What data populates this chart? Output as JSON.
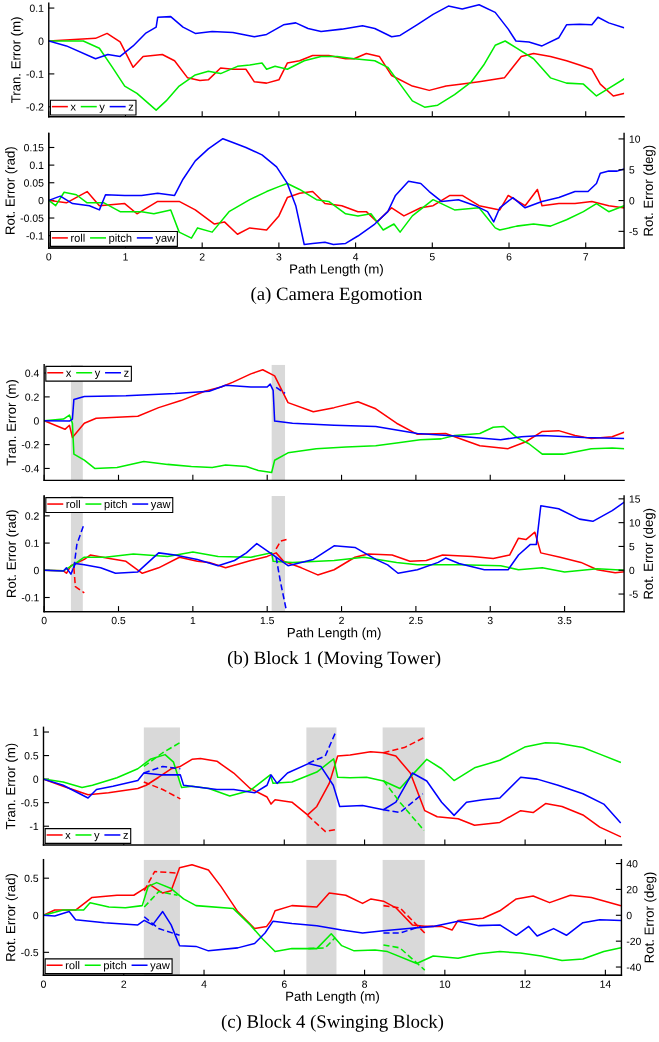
{
  "chart_data": [
    {
      "type": "line",
      "ylabel": "Tran. Error (m)",
      "xlim": [
        0,
        7.5
      ],
      "ylim": [
        -0.23,
        0.115
      ],
      "xticks": [
        0,
        1,
        2,
        3,
        4,
        5,
        6,
        7
      ],
      "yticks": [
        -0.2,
        -0.1,
        0,
        0.1
      ],
      "tick_labels": "y",
      "legend": "bottom left",
      "series": [
        {
          "name": "x",
          "color": "#ff0000",
          "x": [
            0,
            0.61,
            0.76,
            0.93,
            1.1,
            1.23,
            1.48,
            1.64,
            1.81,
            1.97,
            2.08,
            2.24,
            2.4,
            2.57,
            2.68,
            2.84,
            3.0,
            3.11,
            3.27,
            3.44,
            3.65,
            3.87,
            3.98,
            4.14,
            4.31,
            4.47,
            4.74,
            4.96,
            5.18,
            5.39,
            5.61,
            5.94,
            6.16,
            6.32,
            6.54,
            6.75,
            6.92,
            7.08,
            7.19,
            7.36,
            7.5
          ],
          "values": [
            0,
            0.008,
            0.023,
            -0.003,
            -0.08,
            -0.047,
            -0.041,
            -0.06,
            -0.112,
            -0.12,
            -0.118,
            -0.082,
            -0.086,
            -0.086,
            -0.124,
            -0.128,
            -0.118,
            -0.067,
            -0.06,
            -0.044,
            -0.044,
            -0.054,
            -0.054,
            -0.038,
            -0.047,
            -0.105,
            -0.137,
            -0.15,
            -0.137,
            -0.131,
            -0.124,
            -0.112,
            -0.047,
            -0.038,
            -0.047,
            -0.06,
            -0.073,
            -0.086,
            -0.131,
            -0.167,
            -0.159
          ]
        },
        {
          "name": "y",
          "color": "#00ee00",
          "x": [
            0,
            0.45,
            0.66,
            0.83,
            0.99,
            1.15,
            1.4,
            1.53,
            1.7,
            1.91,
            2.08,
            2.24,
            2.46,
            2.62,
            2.78,
            2.84,
            2.95,
            3.11,
            3.33,
            3.55,
            3.76,
            3.98,
            4.25,
            4.42,
            4.58,
            4.74,
            4.9,
            5.07,
            5.29,
            5.51,
            5.67,
            5.82,
            5.95,
            6.1,
            6.32,
            6.54,
            6.75,
            6.97,
            7.14,
            7.3,
            7.5
          ],
          "values": [
            0,
            0,
            -0.022,
            -0.08,
            -0.137,
            -0.159,
            -0.21,
            -0.182,
            -0.137,
            -0.103,
            -0.092,
            -0.099,
            -0.077,
            -0.073,
            -0.067,
            -0.086,
            -0.077,
            -0.086,
            -0.06,
            -0.047,
            -0.047,
            -0.054,
            -0.06,
            -0.08,
            -0.131,
            -0.182,
            -0.201,
            -0.195,
            -0.163,
            -0.124,
            -0.073,
            -0.013,
            0,
            -0.022,
            -0.054,
            -0.112,
            -0.128,
            -0.131,
            -0.167,
            -0.144,
            -0.115
          ]
        },
        {
          "name": "z",
          "color": "#0000ff",
          "x": [
            0,
            0.23,
            0.61,
            0.77,
            0.93,
            1.1,
            1.26,
            1.4,
            1.42,
            1.59,
            1.75,
            1.91,
            2.13,
            2.4,
            2.68,
            2.84,
            3.06,
            3.22,
            3.38,
            3.55,
            3.82,
            4.09,
            4.25,
            4.47,
            4.58,
            4.8,
            5.01,
            5.21,
            5.39,
            5.61,
            5.82,
            5.99,
            6.09,
            6.26,
            6.43,
            6.65,
            6.75,
            6.92,
            7.08,
            7.16,
            7.3,
            7.5
          ],
          "values": [
            0,
            -0.015,
            -0.054,
            -0.041,
            -0.047,
            -0.015,
            0.023,
            0.042,
            0.072,
            0.074,
            0.042,
            0.023,
            0.029,
            0.026,
            0.013,
            0.02,
            0.049,
            0.055,
            0.038,
            0.029,
            0.036,
            0.046,
            0.038,
            0.013,
            0.017,
            0.049,
            0.081,
            0.106,
            0.097,
            0.11,
            0.087,
            0.036,
            0,
            -0.003,
            -0.015,
            0.01,
            0.049,
            0.051,
            0.049,
            0.072,
            0.055,
            0.04
          ]
        }
      ]
    },
    {
      "type": "line",
      "title": "(a) Camera Egomotion",
      "xlabel": "Path Length (m)",
      "ylabel": "Rot. Error (rad)",
      "y2label": "Rot. Error (deg)",
      "xlim": [
        0,
        7.5
      ],
      "ylim": [
        -0.135,
        0.19
      ],
      "y2lim": [
        -7.7,
        10.9
      ],
      "xticks": [
        0,
        1,
        2,
        3,
        4,
        5,
        6,
        7
      ],
      "yticks": [
        -0.1,
        -0.05,
        0,
        0.05,
        0.1,
        0.15
      ],
      "y2ticks": [
        -5,
        0,
        5,
        10
      ],
      "legend": "bottom left",
      "series": [
        {
          "name": "roll",
          "color": "#ff0000",
          "x": [
            0,
            0.23,
            0.5,
            0.66,
            0.99,
            1.15,
            1.42,
            1.7,
            1.91,
            2.16,
            2.29,
            2.46,
            2.62,
            2.84,
            3.0,
            3.11,
            3.27,
            3.44,
            3.6,
            3.82,
            4.03,
            4.14,
            4.28,
            4.47,
            4.63,
            4.85,
            5.01,
            5.23,
            5.39,
            5.61,
            5.88,
            5.99,
            6.21,
            6.37,
            6.43,
            6.65,
            6.86,
            7.08,
            7.3,
            7.5
          ],
          "values": [
            0,
            -0.007,
            0.025,
            -0.015,
            -0.009,
            -0.038,
            -0.003,
            -0.003,
            -0.027,
            -0.067,
            -0.061,
            -0.096,
            -0.078,
            -0.084,
            -0.044,
            0.008,
            0.02,
            0.025,
            -0.009,
            -0.015,
            -0.032,
            -0.032,
            -0.061,
            -0.021,
            -0.044,
            -0.021,
            -0.015,
            0.014,
            0.014,
            -0.015,
            -0.027,
            0.014,
            -0.015,
            0.031,
            -0.015,
            -0.009,
            -0.009,
            -0.003,
            -0.015,
            -0.021
          ]
        },
        {
          "name": "pitch",
          "color": "#00ee00",
          "x": [
            0,
            0.09,
            0.2,
            0.36,
            0.5,
            0.72,
            0.93,
            1.21,
            1.37,
            1.59,
            1.7,
            1.86,
            1.94,
            2.13,
            2.35,
            2.62,
            2.84,
            3.0,
            3.11,
            3.27,
            3.49,
            3.65,
            3.87,
            4.03,
            4.2,
            4.36,
            4.5,
            4.58,
            4.74,
            5.01,
            5.29,
            5.61,
            5.82,
            5.88,
            6.1,
            6.32,
            6.54,
            6.75,
            6.97,
            7.14,
            7.3,
            7.5
          ],
          "values": [
            0,
            -0.015,
            0.023,
            0.016,
            -0.007,
            -0.007,
            -0.032,
            -0.032,
            -0.038,
            -0.027,
            -0.09,
            -0.107,
            -0.078,
            -0.09,
            -0.032,
            0.002,
            0.025,
            0.039,
            0.048,
            0.031,
            0.002,
            -0.003,
            -0.038,
            -0.044,
            -0.038,
            -0.084,
            -0.067,
            -0.09,
            -0.044,
            0.002,
            -0.027,
            -0.021,
            -0.078,
            -0.084,
            -0.073,
            -0.067,
            -0.073,
            -0.055,
            -0.032,
            -0.009,
            -0.032,
            -0.015
          ]
        },
        {
          "name": "yaw",
          "color": "#0000ff",
          "x": [
            0,
            0.15,
            0.31,
            0.53,
            0.66,
            0.74,
            0.99,
            1.21,
            1.42,
            1.64,
            1.75,
            1.91,
            2.08,
            2.27,
            2.4,
            2.57,
            2.78,
            2.97,
            3.11,
            3.22,
            3.33,
            3.44,
            3.6,
            3.71,
            3.87,
            4.03,
            4.25,
            4.42,
            4.52,
            4.69,
            4.85,
            4.96,
            5.12,
            5.34,
            5.56,
            5.72,
            5.8,
            5.88,
            6.05,
            6.21,
            6.43,
            6.65,
            6.86,
            7.03,
            7.14,
            7.19,
            7.3,
            7.41,
            7.5
          ],
          "values": [
            0,
            0.012,
            -0.009,
            -0.015,
            -0.027,
            0.016,
            0.014,
            0.014,
            0.02,
            0.014,
            0.06,
            0.112,
            0.146,
            0.175,
            0.164,
            0.15,
            0.129,
            0.095,
            0.048,
            -0.015,
            -0.125,
            -0.122,
            -0.119,
            -0.125,
            -0.122,
            -0.101,
            -0.067,
            -0.032,
            0.014,
            0.054,
            0.048,
            0.025,
            -0.003,
            0.002,
            -0.015,
            -0.032,
            -0.061,
            -0.021,
            0.008,
            -0.021,
            -0.003,
            0.008,
            0.025,
            0.025,
            0.048,
            0.077,
            0.083,
            0.083,
            0.089
          ]
        }
      ]
    },
    {
      "type": "line",
      "ylabel": "Tran. Error (m)",
      "xlim": [
        0,
        3.9
      ],
      "ylim": [
        -0.5,
        0.47
      ],
      "xticks": [
        0,
        0.5,
        1,
        1.5,
        2,
        2.5,
        3,
        3.5
      ],
      "yticks": [
        -0.4,
        -0.2,
        0,
        0.2,
        0.4
      ],
      "tick_labels": "y",
      "legend": "top left",
      "bands": [
        {
          "axis": "x",
          "from": 0.18,
          "to": 0.26,
          "color": "#d9d9d9"
        },
        {
          "axis": "x",
          "from": 1.53,
          "to": 1.62,
          "color": "#d9d9d9"
        }
      ],
      "series": [
        {
          "name": "x",
          "color": "#ff0000",
          "x": [
            0,
            0.14,
            0.17,
            0.19,
            0.27,
            0.35,
            0.63,
            0.77,
            0.92,
            1.08,
            1.19,
            1.27,
            1.39,
            1.47,
            1.55,
            1.64,
            1.81,
            1.95,
            2.11,
            2.23,
            2.37,
            2.51,
            2.7,
            2.93,
            3.12,
            3.24,
            3.35,
            3.46,
            3.57,
            3.68,
            3.82,
            3.9
          ],
          "values": [
            0,
            -0.072,
            -0.038,
            -0.14,
            -0.021,
            0.021,
            0.038,
            0.11,
            0.169,
            0.248,
            0.283,
            0.324,
            0.393,
            0.428,
            0.376,
            0.152,
            0.076,
            0.11,
            0.159,
            0.1,
            -0.021,
            -0.114,
            -0.107,
            -0.21,
            -0.234,
            -0.176,
            -0.09,
            -0.083,
            -0.124,
            -0.148,
            -0.134,
            -0.097
          ]
        },
        {
          "name": "y",
          "color": "#00ee00",
          "x": [
            0,
            0.13,
            0.17,
            0.19,
            0.2,
            0.27,
            0.34,
            0.49,
            0.67,
            0.83,
            0.99,
            1.13,
            1.22,
            1.36,
            1.44,
            1.53,
            1.55,
            1.64,
            1.83,
            2.03,
            2.23,
            2.37,
            2.53,
            2.67,
            2.76,
            2.93,
            3.02,
            3.09,
            3.18,
            3.26,
            3.35,
            3.49,
            3.68,
            3.82,
            3.9
          ],
          "values": [
            0,
            0.014,
            0.048,
            -0.021,
            -0.28,
            -0.331,
            -0.4,
            -0.393,
            -0.341,
            -0.366,
            -0.383,
            -0.393,
            -0.372,
            -0.383,
            -0.417,
            -0.434,
            -0.331,
            -0.269,
            -0.234,
            -0.221,
            -0.21,
            -0.186,
            -0.159,
            -0.152,
            -0.124,
            -0.107,
            -0.055,
            -0.048,
            -0.141,
            -0.193,
            -0.28,
            -0.28,
            -0.234,
            -0.228,
            -0.234
          ]
        },
        {
          "name": "z",
          "color": "#0000ff",
          "x": [
            0,
            0.17,
            0.19,
            0.2,
            0.27,
            0.55,
            0.88,
            1.11,
            1.22,
            1.39,
            1.5,
            1.52,
            1.54,
            1.55,
            1.67,
            1.95,
            2.23,
            2.51,
            2.79,
            3.07,
            3.21,
            3.35,
            3.63,
            3.9
          ],
          "values": [
            0,
            -0.003,
            0.014,
            0.179,
            0.203,
            0.21,
            0.228,
            0.248,
            0.297,
            0.283,
            0.283,
            0.307,
            0.255,
            -0.003,
            -0.021,
            -0.038,
            -0.048,
            -0.107,
            -0.131,
            -0.159,
            -0.134,
            -0.124,
            -0.141,
            -0.148
          ]
        },
        {
          "color": "#0000ff",
          "line_style": "dashed",
          "x": [
            1.56,
            1.62
          ],
          "values": [
            0.28,
            0.23
          ]
        }
      ]
    },
    {
      "type": "line",
      "title": "(b) Block 1 (Moving Tower)",
      "xlabel": "Path Length (m)",
      "ylabel": "Rot. Error (rad)",
      "y2label": "Rot. Error (deg)",
      "xlim": [
        0,
        3.9
      ],
      "ylim": [
        -0.152,
        0.273
      ],
      "y2lim": [
        -8.7,
        15.6
      ],
      "xticks": [
        0,
        0.5,
        1,
        1.5,
        2,
        2.5,
        3,
        3.5
      ],
      "yticks": [
        -0.1,
        0,
        0.1,
        0.2
      ],
      "y2ticks": [
        -5,
        0,
        5,
        10,
        15
      ],
      "legend": "top left",
      "bands": [
        {
          "axis": "x",
          "from": 0.18,
          "to": 0.26,
          "color": "#d9d9d9"
        },
        {
          "axis": "x",
          "from": 1.53,
          "to": 1.62,
          "color": "#d9d9d9"
        }
      ],
      "series": [
        {
          "name": "roll",
          "color": "#ff0000",
          "x": [
            0,
            0.13,
            0.15,
            0.18,
            0.27,
            0.31,
            0.44,
            0.55,
            0.66,
            0.77,
            0.91,
            1.03,
            1.11,
            1.22,
            1.39,
            1.5,
            1.56,
            1.61,
            1.73,
            1.84,
            1.95,
            2.09,
            2.18,
            2.34,
            2.46,
            2.57,
            2.68,
            2.88,
            3.02,
            3.13,
            3.19,
            3.24,
            3.3,
            3.34,
            3.47,
            3.61,
            3.72,
            3.84,
            3.9
          ],
          "values": [
            0,
            -0.002,
            -0.011,
            0.017,
            0.04,
            0.056,
            0.043,
            0.033,
            -0.011,
            0.009,
            0.048,
            0.033,
            0.029,
            0.009,
            0.036,
            0.051,
            0.064,
            0.033,
            0.009,
            -0.017,
            0.002,
            0.048,
            0.06,
            0.056,
            0.033,
            0.036,
            0.056,
            0.051,
            0.043,
            0.056,
            0.118,
            0.113,
            0.14,
            0.064,
            0.048,
            0.029,
            0.002,
            -0.009,
            -0.006
          ]
        },
        {
          "name": "pitch",
          "color": "#00ee00",
          "x": [
            0,
            0.13,
            0.21,
            0.27,
            0.41,
            0.6,
            0.83,
            1.0,
            1.17,
            1.39,
            1.53,
            1.54,
            1.67,
            1.95,
            2.15,
            2.37,
            2.51,
            2.79,
            3.07,
            3.19,
            3.35,
            3.5,
            3.72,
            3.9
          ],
          "values": [
            0,
            -0.002,
            0.025,
            0.048,
            0.048,
            0.06,
            0.051,
            0.067,
            0.051,
            0.048,
            0.064,
            0.033,
            0.029,
            0.036,
            0.048,
            0.029,
            0.02,
            0.02,
            0.017,
            0.002,
            0.009,
            -0.006,
            0.006,
            0
          ]
        },
        {
          "name": "yaw",
          "color": "#0000ff",
          "x": [
            0,
            0.13,
            0.15,
            0.18,
            0.21,
            0.27,
            0.38,
            0.48,
            0.63,
            0.77,
            0.88,
            1.03,
            1.17,
            1.28,
            1.36,
            1.43,
            1.5,
            1.56,
            1.64,
            1.81,
            1.95,
            2.09,
            2.23,
            2.31,
            2.38,
            2.51,
            2.65,
            2.7,
            2.79,
            2.96,
            3.12,
            3.19,
            3.27,
            3.31,
            3.34,
            3.46,
            3.6,
            3.69,
            3.82,
            3.9
          ],
          "values": [
            0,
            -0.003,
            0.009,
            -0.014,
            0.025,
            0.02,
            0.009,
            -0.011,
            -0.006,
            0.064,
            0.056,
            0.04,
            0.017,
            0.036,
            0.064,
            0.098,
            0.071,
            0.048,
            0.017,
            0.04,
            0.09,
            0.084,
            0.04,
            0.02,
            -0.011,
            0.002,
            0.029,
            0.045,
            0.025,
            0.002,
            0.002,
            0.056,
            0.095,
            0.095,
            0.237,
            0.226,
            0.188,
            0.18,
            0.219,
            0.25
          ]
        },
        {
          "color": "#ff0000",
          "line_style": "dashed",
          "x": [
            0.2,
            0.21,
            0.27
          ],
          "values": [
            0.009,
            -0.06,
            -0.083
          ]
        },
        {
          "color": "#ff0000",
          "line_style": "dashed",
          "x": [
            1.56,
            1.59,
            1.63
          ],
          "values": [
            0.079,
            0.107,
            0.113
          ]
        },
        {
          "color": "#0000ff",
          "line_style": "dashed",
          "x": [
            0.2,
            0.22,
            0.27
          ],
          "values": [
            0.009,
            0.095,
            0.172
          ]
        },
        {
          "color": "#0000ff",
          "line_style": "dashed",
          "x": [
            1.56,
            1.59,
            1.63
          ],
          "values": [
            0.048,
            -0.045,
            -0.15
          ]
        }
      ]
    },
    {
      "type": "line",
      "ylabel": "Tran. Error (m)",
      "xlim": [
        0,
        14.4
      ],
      "ylim": [
        -1.4,
        1.1
      ],
      "xticks": [
        0,
        2,
        4,
        6,
        8,
        10,
        12,
        14
      ],
      "yticks": [
        -1,
        -0.5,
        0,
        0.5,
        1
      ],
      "tick_labels": "y",
      "legend": "bottom left",
      "bands": [
        {
          "axis": "x",
          "from": 2.5,
          "to": 3.4,
          "color": "#d9d9d9"
        },
        {
          "axis": "x",
          "from": 6.55,
          "to": 7.3,
          "color": "#d9d9d9"
        },
        {
          "axis": "x",
          "from": 8.45,
          "to": 9.5,
          "color": "#d9d9d9"
        }
      ],
      "series": [
        {
          "name": "x",
          "color": "#ff0000",
          "x": [
            0,
            0.49,
            1.11,
            1.62,
            2.35,
            2.56,
            2.87,
            3.18,
            3.41,
            3.7,
            3.91,
            4.32,
            4.74,
            5.15,
            5.57,
            5.67,
            5.77,
            6.19,
            6.58,
            6.81,
            7.12,
            7.33,
            7.64,
            8.15,
            8.47,
            8.78,
            9.14,
            9.5,
            9.81,
            10.33,
            10.74,
            11.37,
            11.89,
            12.2,
            12.51,
            12.92,
            13.44,
            13.86,
            14.37
          ],
          "values": [
            0,
            -0.15,
            -0.33,
            -0.29,
            -0.2,
            -0.13,
            0.04,
            0.22,
            0.27,
            0.42,
            0.44,
            0.38,
            0.13,
            -0.2,
            -0.38,
            -0.53,
            -0.44,
            -0.49,
            -0.76,
            -0.58,
            -0.09,
            0.49,
            0.51,
            0.58,
            0.56,
            0.49,
            0.13,
            -0.67,
            -0.8,
            -0.84,
            -0.98,
            -0.92,
            -0.67,
            -0.71,
            -0.52,
            -0.58,
            -0.76,
            -1.02,
            -1.22
          ]
        },
        {
          "name": "y",
          "color": "#00ee00",
          "x": [
            0,
            0.49,
            0.96,
            1.22,
            1.83,
            2.35,
            2.66,
            3.03,
            3.24,
            3.44,
            3.7,
            4.12,
            4.64,
            5.15,
            5.65,
            5.72,
            6.19,
            6.81,
            7.23,
            7.33,
            7.64,
            8.05,
            8.47,
            8.88,
            9.19,
            9.55,
            9.92,
            10.23,
            10.74,
            11.37,
            11.99,
            12.51,
            12.82,
            13.44,
            13.86,
            14.37
          ],
          "values": [
            0,
            -0.06,
            -0.18,
            -0.13,
            0.03,
            0.22,
            0.42,
            0.52,
            0.36,
            -0.18,
            -0.15,
            -0.2,
            -0.36,
            -0.24,
            0.09,
            -0.09,
            -0.06,
            0.15,
            0.43,
            0.04,
            0.03,
            0.04,
            -0.04,
            -0.2,
            0.09,
            0.42,
            0.22,
            -0.03,
            0.24,
            0.4,
            0.68,
            0.77,
            0.76,
            0.67,
            0.53,
            0.36
          ]
        },
        {
          "name": "z",
          "color": "#0000ff",
          "x": [
            0,
            0.49,
            1.11,
            1.32,
            1.73,
            2.35,
            2.5,
            2.97,
            3.41,
            3.49,
            4.32,
            4.74,
            5.26,
            5.57,
            5.67,
            5.82,
            6.08,
            6.6,
            6.91,
            7.22,
            7.38,
            7.95,
            8.47,
            8.78,
            9.19,
            9.55,
            9.92,
            10.23,
            10.54,
            10.95,
            11.37,
            11.89,
            12.3,
            12.82,
            13.44,
            13.96,
            14.37
          ],
          "values": [
            0,
            -0.13,
            -0.4,
            -0.22,
            -0.15,
            -0.03,
            0.13,
            0.09,
            0.09,
            -0.13,
            -0.22,
            -0.22,
            -0.29,
            -0.13,
            0.09,
            -0.09,
            0.13,
            0.33,
            0.27,
            -0.13,
            -0.58,
            -0.56,
            -0.65,
            -0.49,
            0.13,
            -0.04,
            -0.49,
            -0.77,
            -0.49,
            -0.44,
            -0.4,
            0.04,
            0,
            -0.13,
            -0.31,
            -0.53,
            -0.92
          ]
        },
        {
          "color": "#ff0000",
          "line_style": "dashed",
          "x": [
            2.5,
            2.97,
            3.41
          ],
          "values": [
            -0.06,
            -0.22,
            -0.42
          ]
        },
        {
          "color": "#ff0000",
          "line_style": "dashed",
          "x": [
            6.58,
            7.02,
            7.3
          ],
          "values": [
            -0.77,
            -1.11,
            -1.07
          ]
        },
        {
          "color": "#ff0000",
          "line_style": "dashed",
          "x": [
            8.47,
            8.99,
            9.5
          ],
          "values": [
            0.56,
            0.67,
            0.89
          ]
        },
        {
          "color": "#00ee00",
          "line_style": "dashed",
          "x": [
            2.5,
            2.97,
            3.39
          ],
          "values": [
            0.27,
            0.56,
            0.77
          ]
        },
        {
          "color": "#00ee00",
          "line_style": "dashed",
          "x": [
            8.47,
            8.88,
            9.48
          ],
          "values": [
            -0.03,
            -0.49,
            -1.09
          ]
        },
        {
          "color": "#0000ff",
          "line_style": "dashed",
          "x": [
            2.5,
            2.97,
            3.41
          ],
          "values": [
            0.13,
            0.27,
            0.22
          ]
        },
        {
          "color": "#0000ff",
          "line_style": "dashed",
          "x": [
            6.6,
            7.02,
            7.28
          ],
          "values": [
            0.34,
            0.49,
            1.0
          ]
        },
        {
          "color": "#0000ff",
          "line_style": "dashed",
          "x": [
            8.47,
            8.88,
            9.45
          ],
          "values": [
            -0.65,
            -0.71,
            -0.31
          ]
        }
      ]
    },
    {
      "type": "line",
      "title": "(c) Block 4 (Swinging Block)",
      "xlabel": "Path Length (m)",
      "ylabel": "Rot. Error (rad)",
      "y2label": "Rot. Error (deg)",
      "xlim": [
        0,
        14.4
      ],
      "ylim": [
        -0.81,
        0.75
      ],
      "y2lim": [
        -46.4,
        43
      ],
      "xticks": [
        0,
        2,
        4,
        6,
        8,
        10,
        12,
        14
      ],
      "yticks": [
        -0.5,
        0,
        0.5
      ],
      "y2ticks": [
        -40,
        -20,
        0,
        20,
        40
      ],
      "legend": "bottom left",
      "bands": [
        {
          "axis": "x",
          "from": 2.5,
          "to": 3.4,
          "color": "#d9d9d9"
        },
        {
          "axis": "x",
          "from": 6.55,
          "to": 7.3,
          "color": "#d9d9d9"
        },
        {
          "axis": "x",
          "from": 8.45,
          "to": 9.5,
          "color": "#d9d9d9"
        }
      ],
      "series": [
        {
          "name": "roll",
          "color": "#ff0000",
          "x": [
            0,
            0.28,
            0.8,
            1.21,
            1.83,
            2.25,
            2.51,
            2.66,
            2.97,
            3.18,
            3.39,
            3.7,
            4.11,
            4.42,
            4.84,
            5.26,
            5.56,
            5.67,
            5.77,
            6.19,
            6.81,
            7.12,
            7.53,
            7.95,
            8.16,
            8.47,
            8.78,
            9.19,
            9.5,
            9.92,
            10.18,
            10.33,
            10.95,
            11.37,
            11.78,
            12.2,
            12.61,
            13.13,
            13.65,
            14.37
          ],
          "values": [
            0,
            0.07,
            0.07,
            0.24,
            0.27,
            0.27,
            0.36,
            0.41,
            0.3,
            0.33,
            0.64,
            0.68,
            0.61,
            0.39,
            0.05,
            -0.18,
            -0.15,
            -0.07,
            0.06,
            0.13,
            0.11,
            0.3,
            0.27,
            0.16,
            0.22,
            0.19,
            0.1,
            -0.13,
            -0.15,
            -0.15,
            -0.2,
            -0.07,
            -0.04,
            0.06,
            0.22,
            0.26,
            0.17,
            0.27,
            0.24,
            0.13
          ]
        },
        {
          "name": "pitch",
          "color": "#00ee00",
          "x": [
            0,
            0.49,
            1.0,
            1.16,
            1.63,
            2.04,
            2.46,
            2.61,
            2.82,
            3.18,
            3.49,
            3.8,
            4.73,
            5.15,
            5.46,
            5.77,
            6.19,
            6.81,
            7.17,
            7.43,
            7.74,
            8.26,
            8.57,
            9.3,
            9.71,
            10.33,
            10.85,
            11.37,
            11.88,
            12.4,
            12.92,
            13.44,
            13.96,
            14.37
          ],
          "values": [
            0,
            0.07,
            0.07,
            0.17,
            0.11,
            0.1,
            0.13,
            0.39,
            0.44,
            0.36,
            0.22,
            0.13,
            0.09,
            -0.13,
            -0.32,
            -0.49,
            -0.45,
            -0.45,
            -0.25,
            -0.41,
            -0.48,
            -0.47,
            -0.49,
            -0.65,
            -0.55,
            -0.58,
            -0.52,
            -0.49,
            -0.51,
            -0.55,
            -0.61,
            -0.59,
            -0.49,
            -0.44
          ]
        },
        {
          "name": "yaw",
          "color": "#0000ff",
          "x": [
            0,
            0.28,
            0.64,
            0.8,
            1.52,
            2.35,
            2.51,
            2.72,
            2.97,
            3.18,
            3.39,
            3.8,
            4.11,
            4.84,
            5.26,
            5.52,
            5.72,
            6.19,
            6.81,
            7.43,
            7.95,
            8.47,
            9.09,
            9.71,
            10.33,
            10.85,
            11.37,
            11.78,
            12.09,
            12.3,
            12.71,
            13.03,
            13.44,
            13.86,
            14.37
          ],
          "values": [
            0,
            -0.01,
            0.05,
            -0.06,
            -0.1,
            -0.13,
            -0.07,
            -0.13,
            0.05,
            -0.13,
            -0.41,
            -0.42,
            -0.48,
            -0.44,
            -0.38,
            -0.24,
            -0.08,
            -0.11,
            -0.14,
            -0.2,
            -0.24,
            -0.21,
            -0.18,
            -0.15,
            -0.08,
            -0.14,
            -0.13,
            -0.27,
            -0.15,
            -0.28,
            -0.18,
            -0.27,
            -0.1,
            -0.06,
            -0.07
          ]
        },
        {
          "color": "#ff0000",
          "line_style": "dashed",
          "x": [
            2.51,
            2.77,
            3.29
          ],
          "values": [
            0.33,
            0.59,
            0.57
          ]
        },
        {
          "color": "#ff0000",
          "line_style": "dashed",
          "x": [
            8.47,
            8.88,
            9.5
          ],
          "values": [
            0.13,
            0.1,
            -0.24
          ]
        },
        {
          "color": "#00ee00",
          "line_style": "dashed",
          "x": [
            2.51,
            2.87,
            3.34
          ],
          "values": [
            0.11,
            0.32,
            0.27
          ]
        },
        {
          "color": "#00ee00",
          "line_style": "dashed",
          "x": [
            6.6,
            7.02,
            7.27
          ],
          "values": [
            -0.45,
            -0.44,
            -0.3
          ]
        },
        {
          "color": "#00ee00",
          "line_style": "dashed",
          "x": [
            8.47,
            8.88,
            9.5
          ],
          "values": [
            -0.4,
            -0.44,
            -0.74
          ]
        },
        {
          "color": "#0000ff",
          "line_style": "dashed",
          "x": [
            2.51,
            2.87,
            3.39
          ],
          "values": [
            -0.02,
            -0.18,
            -0.27
          ]
        },
        {
          "color": "#0000ff",
          "line_style": "dashed",
          "x": [
            8.47,
            8.88,
            9.4
          ],
          "values": [
            -0.24,
            -0.24,
            -0.15
          ]
        }
      ]
    }
  ]
}
